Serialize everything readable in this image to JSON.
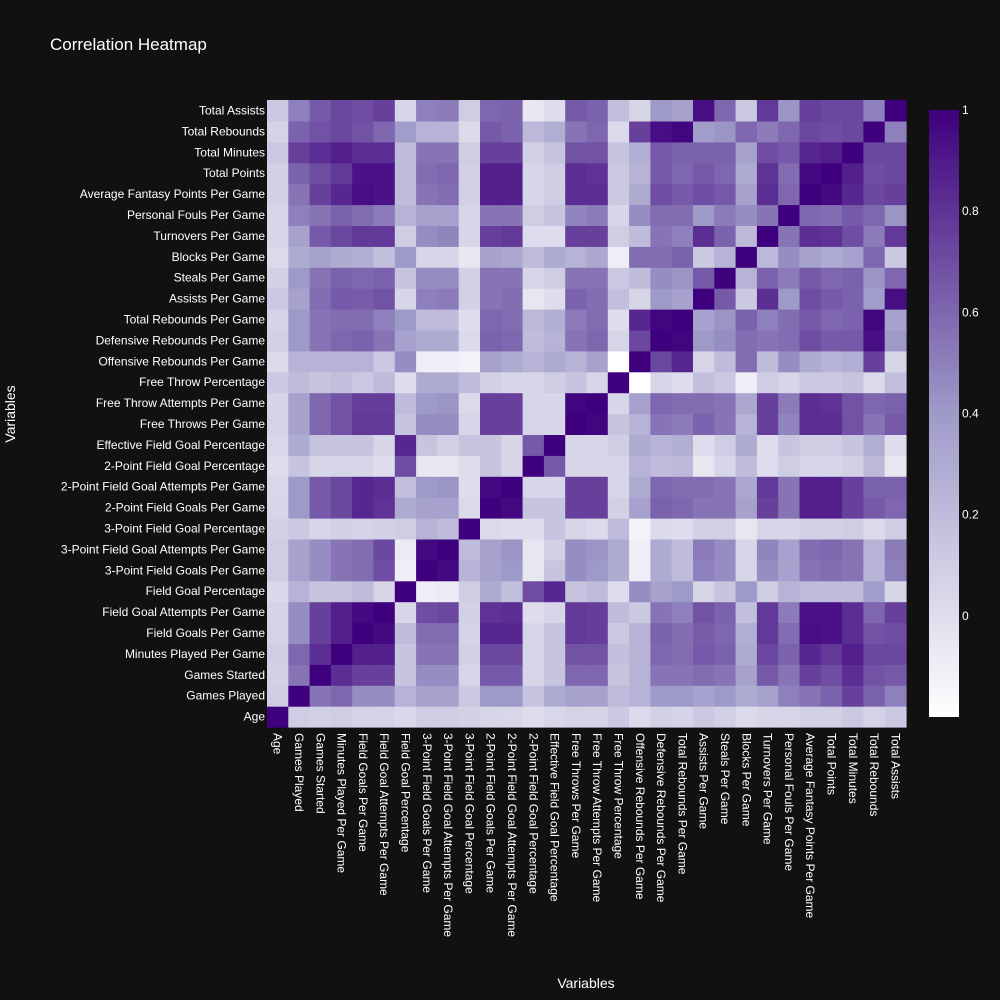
{
  "chart_data": {
    "type": "heatmap",
    "title": "Correlation Heatmap",
    "xlabel": "Variables",
    "ylabel": "Variables",
    "variables": [
      "Age",
      "Games Played",
      "Games Started",
      "Minutes Played Per Game",
      "Field Goals Per Game",
      "Field Goal Attempts Per Game",
      "Field Goal Percentage",
      "3-Point Field Goals Per Game",
      "3-Point Field Goal Attempts Per Game",
      "3-Point Field Goal Percentage",
      "2-Point Field Goals Per Game",
      "2-Point Field Goal Attempts Per Game",
      "2-Point Field Goal Percentage",
      "Effective Field Goal Percentage",
      "Free Throws Per Game",
      "Free Throw Attempts Per Game",
      "Free Throw Percentage",
      "Offensive Rebounds Per Game",
      "Defensive Rebounds Per Game",
      "Total Rebounds Per Game",
      "Assists Per Game",
      "Steals Per Game",
      "Blocks Per Game",
      "Turnovers Per Game",
      "Personal Fouls Per Game",
      "Average Fantasy Points Per Game",
      "Total Points",
      "Total Minutes",
      "Total Rebounds",
      "Total Assists"
    ],
    "colorscale": {
      "low": "#ffffff",
      "mid": "#9e9ac8",
      "high": "#3f007d"
    },
    "zmin": -0.2,
    "zmax": 1,
    "colorbar_ticks": [
      0,
      0.2,
      0.4,
      0.6,
      0.8,
      1
    ],
    "colorbar_ticklabels": [
      "0",
      "0.2",
      "0.4",
      "0.6",
      "0.8",
      "1"
    ],
    "z": [
      [
        1.0,
        0.1,
        0.08,
        0.1,
        0.07,
        0.06,
        0.03,
        0.1,
        0.1,
        0.08,
        0.05,
        0.04,
        0.0,
        0.04,
        0.07,
        0.06,
        0.12,
        0.02,
        0.08,
        0.06,
        0.12,
        0.08,
        0.02,
        0.05,
        0.05,
        0.08,
        0.08,
        0.12,
        0.07,
        0.12
      ],
      [
        0.1,
        1.0,
        0.55,
        0.6,
        0.45,
        0.45,
        0.25,
        0.35,
        0.35,
        0.12,
        0.4,
        0.4,
        0.15,
        0.3,
        0.35,
        0.35,
        0.2,
        0.25,
        0.4,
        0.4,
        0.35,
        0.4,
        0.3,
        0.35,
        0.5,
        0.55,
        0.62,
        0.75,
        0.62,
        0.5
      ],
      [
        0.08,
        0.55,
        1.0,
        0.82,
        0.75,
        0.75,
        0.15,
        0.45,
        0.45,
        0.05,
        0.65,
        0.65,
        0.05,
        0.15,
        0.6,
        0.6,
        0.15,
        0.25,
        0.55,
        0.55,
        0.58,
        0.55,
        0.35,
        0.65,
        0.55,
        0.75,
        0.7,
        0.82,
        0.68,
        0.65
      ],
      [
        0.1,
        0.6,
        0.82,
        1.0,
        0.88,
        0.88,
        0.15,
        0.55,
        0.55,
        0.08,
        0.72,
        0.72,
        0.05,
        0.15,
        0.68,
        0.68,
        0.18,
        0.25,
        0.6,
        0.58,
        0.65,
        0.62,
        0.3,
        0.72,
        0.62,
        0.85,
        0.78,
        0.88,
        0.72,
        0.72
      ],
      [
        0.07,
        0.45,
        0.75,
        0.88,
        1.0,
        0.96,
        0.2,
        0.58,
        0.58,
        0.06,
        0.85,
        0.85,
        0.05,
        0.15,
        0.78,
        0.76,
        0.12,
        0.25,
        0.62,
        0.58,
        0.64,
        0.6,
        0.28,
        0.78,
        0.58,
        0.95,
        0.93,
        0.82,
        0.68,
        0.7
      ],
      [
        0.06,
        0.45,
        0.75,
        0.88,
        0.96,
        1.0,
        0.05,
        0.7,
        0.72,
        0.08,
        0.8,
        0.82,
        0.0,
        0.05,
        0.78,
        0.76,
        0.2,
        0.12,
        0.55,
        0.5,
        0.68,
        0.62,
        0.18,
        0.78,
        0.52,
        0.93,
        0.93,
        0.82,
        0.6,
        0.75
      ],
      [
        0.03,
        0.25,
        0.15,
        0.15,
        0.2,
        0.05,
        1.0,
        -0.1,
        -0.08,
        0.1,
        0.3,
        0.18,
        0.7,
        0.85,
        0.15,
        0.2,
        0.0,
        0.45,
        0.35,
        0.4,
        0.05,
        0.15,
        0.4,
        0.1,
        0.25,
        0.2,
        0.2,
        0.2,
        0.38,
        0.05
      ],
      [
        0.1,
        0.35,
        0.45,
        0.55,
        0.58,
        0.7,
        -0.1,
        1.0,
        0.97,
        0.25,
        0.35,
        0.4,
        -0.05,
        0.15,
        0.45,
        0.4,
        0.3,
        -0.1,
        0.3,
        0.2,
        0.5,
        0.45,
        0.05,
        0.45,
        0.35,
        0.55,
        0.58,
        0.55,
        0.25,
        0.5
      ],
      [
        0.1,
        0.35,
        0.45,
        0.55,
        0.58,
        0.72,
        -0.08,
        0.97,
        1.0,
        0.2,
        0.35,
        0.42,
        -0.05,
        0.08,
        0.45,
        0.42,
        0.3,
        -0.1,
        0.3,
        0.2,
        0.52,
        0.45,
        0.05,
        0.48,
        0.35,
        0.58,
        0.6,
        0.55,
        0.25,
        0.52
      ],
      [
        0.08,
        0.12,
        0.05,
        0.08,
        0.06,
        0.08,
        0.1,
        0.25,
        0.2,
        1.0,
        0.02,
        0.0,
        0.0,
        0.15,
        0.05,
        0.02,
        0.2,
        -0.12,
        0.02,
        0.0,
        0.08,
        0.08,
        -0.05,
        0.05,
        0.05,
        0.08,
        0.08,
        0.1,
        0.02,
        0.1
      ],
      [
        0.05,
        0.4,
        0.65,
        0.72,
        0.85,
        0.8,
        0.3,
        0.35,
        0.35,
        0.02,
        1.0,
        0.97,
        0.15,
        0.15,
        0.75,
        0.75,
        0.08,
        0.35,
        0.62,
        0.6,
        0.55,
        0.55,
        0.35,
        0.75,
        0.55,
        0.88,
        0.88,
        0.75,
        0.65,
        0.6
      ],
      [
        0.04,
        0.4,
        0.65,
        0.72,
        0.85,
        0.82,
        0.18,
        0.4,
        0.42,
        0.0,
        0.97,
        1.0,
        0.05,
        0.05,
        0.75,
        0.75,
        0.05,
        0.3,
        0.6,
        0.58,
        0.58,
        0.55,
        0.32,
        0.78,
        0.55,
        0.88,
        0.88,
        0.75,
        0.62,
        0.62
      ],
      [
        0.0,
        0.15,
        0.05,
        0.05,
        0.05,
        0.0,
        0.7,
        -0.05,
        -0.05,
        0.0,
        0.15,
        0.05,
        1.0,
        0.65,
        0.05,
        0.05,
        0.05,
        0.25,
        0.2,
        0.22,
        -0.05,
        0.05,
        0.2,
        0.0,
        0.1,
        0.05,
        0.05,
        0.08,
        0.22,
        -0.05
      ],
      [
        0.04,
        0.3,
        0.15,
        0.15,
        0.15,
        0.05,
        0.85,
        0.15,
        0.08,
        0.15,
        0.15,
        0.05,
        0.65,
        1.0,
        0.05,
        0.05,
        0.1,
        0.3,
        0.25,
        0.28,
        0.0,
        0.1,
        0.3,
        0.0,
        0.15,
        0.1,
        0.1,
        0.15,
        0.28,
        0.0
      ],
      [
        0.07,
        0.35,
        0.6,
        0.68,
        0.78,
        0.78,
        0.15,
        0.45,
        0.45,
        0.05,
        0.75,
        0.75,
        0.05,
        0.05,
        1.0,
        0.98,
        0.15,
        0.25,
        0.55,
        0.52,
        0.62,
        0.55,
        0.25,
        0.75,
        0.48,
        0.82,
        0.82,
        0.68,
        0.55,
        0.65
      ],
      [
        0.06,
        0.35,
        0.6,
        0.68,
        0.76,
        0.76,
        0.2,
        0.4,
        0.42,
        0.02,
        0.75,
        0.75,
        0.05,
        0.05,
        0.98,
        1.0,
        0.05,
        0.35,
        0.6,
        0.58,
        0.58,
        0.55,
        0.32,
        0.75,
        0.52,
        0.82,
        0.8,
        0.68,
        0.6,
        0.62
      ],
      [
        0.12,
        0.2,
        0.15,
        0.18,
        0.12,
        0.2,
        0.0,
        0.3,
        0.3,
        0.2,
        0.08,
        0.05,
        0.05,
        0.1,
        0.15,
        0.05,
        1.0,
        -0.2,
        0.05,
        0.0,
        0.18,
        0.12,
        -0.1,
        0.1,
        0.05,
        0.12,
        0.12,
        0.15,
        0.02,
        0.18
      ],
      [
        0.02,
        0.25,
        0.25,
        0.25,
        0.25,
        0.12,
        0.45,
        -0.1,
        -0.1,
        -0.12,
        0.35,
        0.3,
        0.25,
        0.3,
        0.25,
        0.35,
        -0.2,
        1.0,
        0.72,
        0.85,
        0.05,
        0.2,
        0.58,
        0.2,
        0.45,
        0.3,
        0.25,
        0.28,
        0.75,
        0.05
      ],
      [
        0.08,
        0.4,
        0.55,
        0.6,
        0.62,
        0.55,
        0.35,
        0.3,
        0.3,
        0.02,
        0.62,
        0.6,
        0.2,
        0.25,
        0.55,
        0.6,
        0.05,
        0.72,
        1.0,
        0.98,
        0.4,
        0.45,
        0.58,
        0.55,
        0.58,
        0.7,
        0.65,
        0.65,
        0.95,
        0.4
      ],
      [
        0.06,
        0.4,
        0.55,
        0.58,
        0.58,
        0.5,
        0.4,
        0.2,
        0.2,
        0.0,
        0.6,
        0.58,
        0.22,
        0.28,
        0.52,
        0.58,
        0.0,
        0.85,
        0.98,
        1.0,
        0.35,
        0.42,
        0.62,
        0.5,
        0.58,
        0.65,
        0.6,
        0.62,
        0.98,
        0.35
      ],
      [
        0.12,
        0.35,
        0.58,
        0.65,
        0.64,
        0.68,
        0.05,
        0.5,
        0.52,
        0.08,
        0.55,
        0.58,
        -0.05,
        0.0,
        0.62,
        0.58,
        0.18,
        0.05,
        0.4,
        0.35,
        1.0,
        0.65,
        0.12,
        0.82,
        0.4,
        0.7,
        0.65,
        0.62,
        0.38,
        0.95
      ],
      [
        0.08,
        0.4,
        0.55,
        0.62,
        0.6,
        0.62,
        0.15,
        0.45,
        0.45,
        0.08,
        0.55,
        0.55,
        0.05,
        0.1,
        0.55,
        0.55,
        0.12,
        0.2,
        0.45,
        0.42,
        0.65,
        1.0,
        0.25,
        0.62,
        0.52,
        0.65,
        0.6,
        0.62,
        0.42,
        0.6
      ],
      [
        0.02,
        0.3,
        0.35,
        0.3,
        0.28,
        0.18,
        0.4,
        0.05,
        0.05,
        -0.05,
        0.35,
        0.32,
        0.2,
        0.3,
        0.25,
        0.32,
        -0.1,
        0.58,
        0.58,
        0.62,
        0.12,
        0.25,
        1.0,
        0.22,
        0.45,
        0.35,
        0.3,
        0.35,
        0.6,
        0.12
      ],
      [
        0.05,
        0.35,
        0.65,
        0.72,
        0.78,
        0.78,
        0.1,
        0.45,
        0.48,
        0.05,
        0.75,
        0.78,
        0.0,
        0.0,
        0.75,
        0.75,
        0.1,
        0.2,
        0.55,
        0.5,
        0.82,
        0.62,
        0.22,
        1.0,
        0.55,
        0.82,
        0.8,
        0.7,
        0.52,
        0.78
      ],
      [
        0.05,
        0.5,
        0.55,
        0.62,
        0.58,
        0.52,
        0.25,
        0.35,
        0.35,
        0.05,
        0.55,
        0.55,
        0.1,
        0.15,
        0.48,
        0.52,
        0.05,
        0.45,
        0.58,
        0.58,
        0.4,
        0.52,
        0.45,
        0.55,
        1.0,
        0.6,
        0.58,
        0.65,
        0.6,
        0.42
      ],
      [
        0.08,
        0.55,
        0.75,
        0.85,
        0.95,
        0.93,
        0.2,
        0.55,
        0.58,
        0.08,
        0.88,
        0.88,
        0.05,
        0.1,
        0.82,
        0.82,
        0.12,
        0.3,
        0.7,
        0.65,
        0.7,
        0.65,
        0.35,
        0.82,
        0.6,
        1.0,
        0.97,
        0.85,
        0.72,
        0.75
      ],
      [
        0.08,
        0.62,
        0.7,
        0.78,
        0.93,
        0.93,
        0.2,
        0.58,
        0.6,
        0.08,
        0.88,
        0.88,
        0.05,
        0.1,
        0.82,
        0.8,
        0.12,
        0.25,
        0.65,
        0.6,
        0.65,
        0.6,
        0.3,
        0.8,
        0.58,
        0.97,
        1.0,
        0.88,
        0.7,
        0.72
      ],
      [
        0.12,
        0.75,
        0.82,
        0.88,
        0.82,
        0.82,
        0.2,
        0.55,
        0.55,
        0.1,
        0.75,
        0.75,
        0.08,
        0.15,
        0.68,
        0.68,
        0.15,
        0.28,
        0.65,
        0.62,
        0.62,
        0.62,
        0.35,
        0.7,
        0.65,
        0.85,
        0.88,
        1.0,
        0.72,
        0.72
      ],
      [
        0.07,
        0.62,
        0.68,
        0.72,
        0.68,
        0.6,
        0.38,
        0.25,
        0.25,
        0.02,
        0.65,
        0.62,
        0.22,
        0.28,
        0.55,
        0.6,
        0.02,
        0.75,
        0.95,
        0.98,
        0.38,
        0.42,
        0.6,
        0.52,
        0.6,
        0.72,
        0.7,
        0.72,
        1.0,
        0.5
      ],
      [
        0.12,
        0.5,
        0.65,
        0.72,
        0.7,
        0.75,
        0.05,
        0.5,
        0.52,
        0.1,
        0.6,
        0.62,
        -0.05,
        0.0,
        0.65,
        0.62,
        0.18,
        0.05,
        0.4,
        0.35,
        0.95,
        0.6,
        0.12,
        0.78,
        0.42,
        0.75,
        0.72,
        0.72,
        0.5,
        1.0
      ]
    ]
  }
}
